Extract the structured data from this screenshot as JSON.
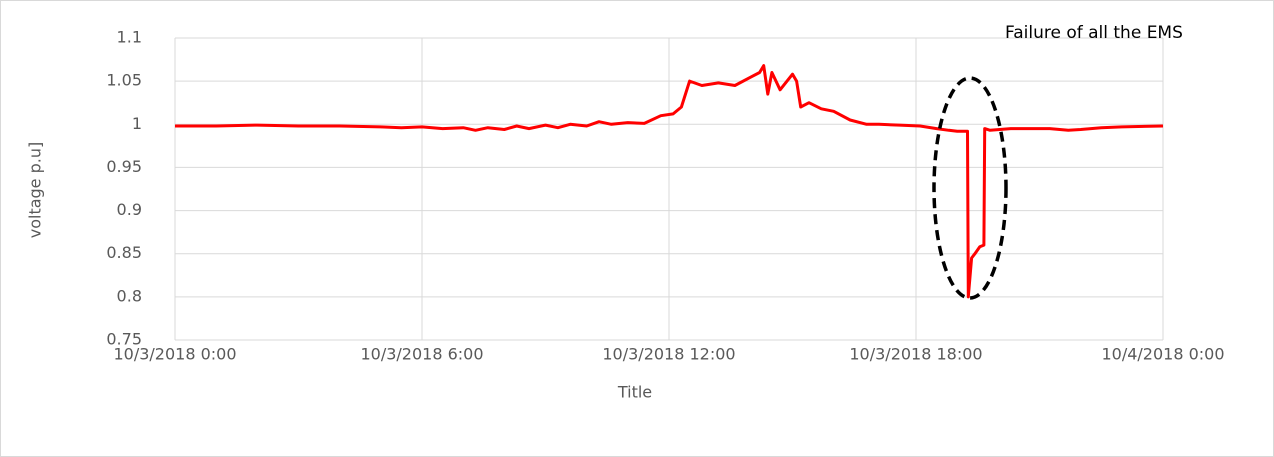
{
  "chart_data": {
    "type": "line",
    "xlabel": "Title",
    "ylabel": "voltage p.u]",
    "annotation": "Failure of all the EMS",
    "xlim": [
      0,
      24
    ],
    "xticks": [
      {
        "value": 0,
        "label": "10/3/2018 0:00"
      },
      {
        "value": 6,
        "label": "10/3/2018 6:00"
      },
      {
        "value": 12,
        "label": "10/3/2018 12:00"
      },
      {
        "value": 18,
        "label": "10/3/2018 18:00"
      },
      {
        "value": 24,
        "label": "10/4/2018 0:00"
      }
    ],
    "ylim": [
      0.75,
      1.1
    ],
    "yticks": [
      0.75,
      0.8,
      0.85,
      0.9,
      0.95,
      1,
      1.05,
      1.1
    ],
    "grid": true,
    "series": [
      {
        "name": "voltage",
        "color": "#ff0000",
        "x": [
          0,
          1,
          2,
          3,
          4,
          5,
          5.5,
          6,
          6.5,
          7,
          7.3,
          7.6,
          8,
          8.3,
          8.6,
          9,
          9.3,
          9.6,
          10,
          10.3,
          10.6,
          11,
          11.4,
          11.8,
          12.1,
          12.3,
          12.5,
          12.8,
          13.2,
          13.6,
          14,
          14.2,
          14.3,
          14.4,
          14.5,
          14.7,
          15,
          15.1,
          15.2,
          15.4,
          15.7,
          16,
          16.4,
          16.8,
          17.1,
          17.6,
          18.1,
          18.5,
          18.8,
          19.0,
          19.25,
          19.27,
          19.35,
          19.43,
          19.55,
          19.65,
          19.67,
          19.8,
          20.3,
          21.25,
          21.7,
          22,
          22.5,
          23,
          24
        ],
        "values": [
          0.998,
          0.998,
          0.999,
          0.998,
          0.998,
          0.997,
          0.996,
          0.997,
          0.995,
          0.996,
          0.993,
          0.996,
          0.994,
          0.998,
          0.995,
          0.999,
          0.996,
          1.0,
          0.998,
          1.003,
          1.0,
          1.002,
          1.001,
          1.01,
          1.012,
          1.02,
          1.05,
          1.045,
          1.048,
          1.045,
          1.055,
          1.06,
          1.068,
          1.035,
          1.06,
          1.04,
          1.058,
          1.05,
          1.02,
          1.025,
          1.018,
          1.015,
          1.005,
          1.0,
          1.0,
          0.999,
          0.998,
          0.995,
          0.993,
          0.992,
          0.992,
          0.8,
          0.845,
          0.85,
          0.858,
          0.86,
          0.995,
          0.993,
          0.995,
          0.995,
          0.993,
          0.994,
          0.996,
          0.997,
          0.998
        ]
      }
    ]
  }
}
